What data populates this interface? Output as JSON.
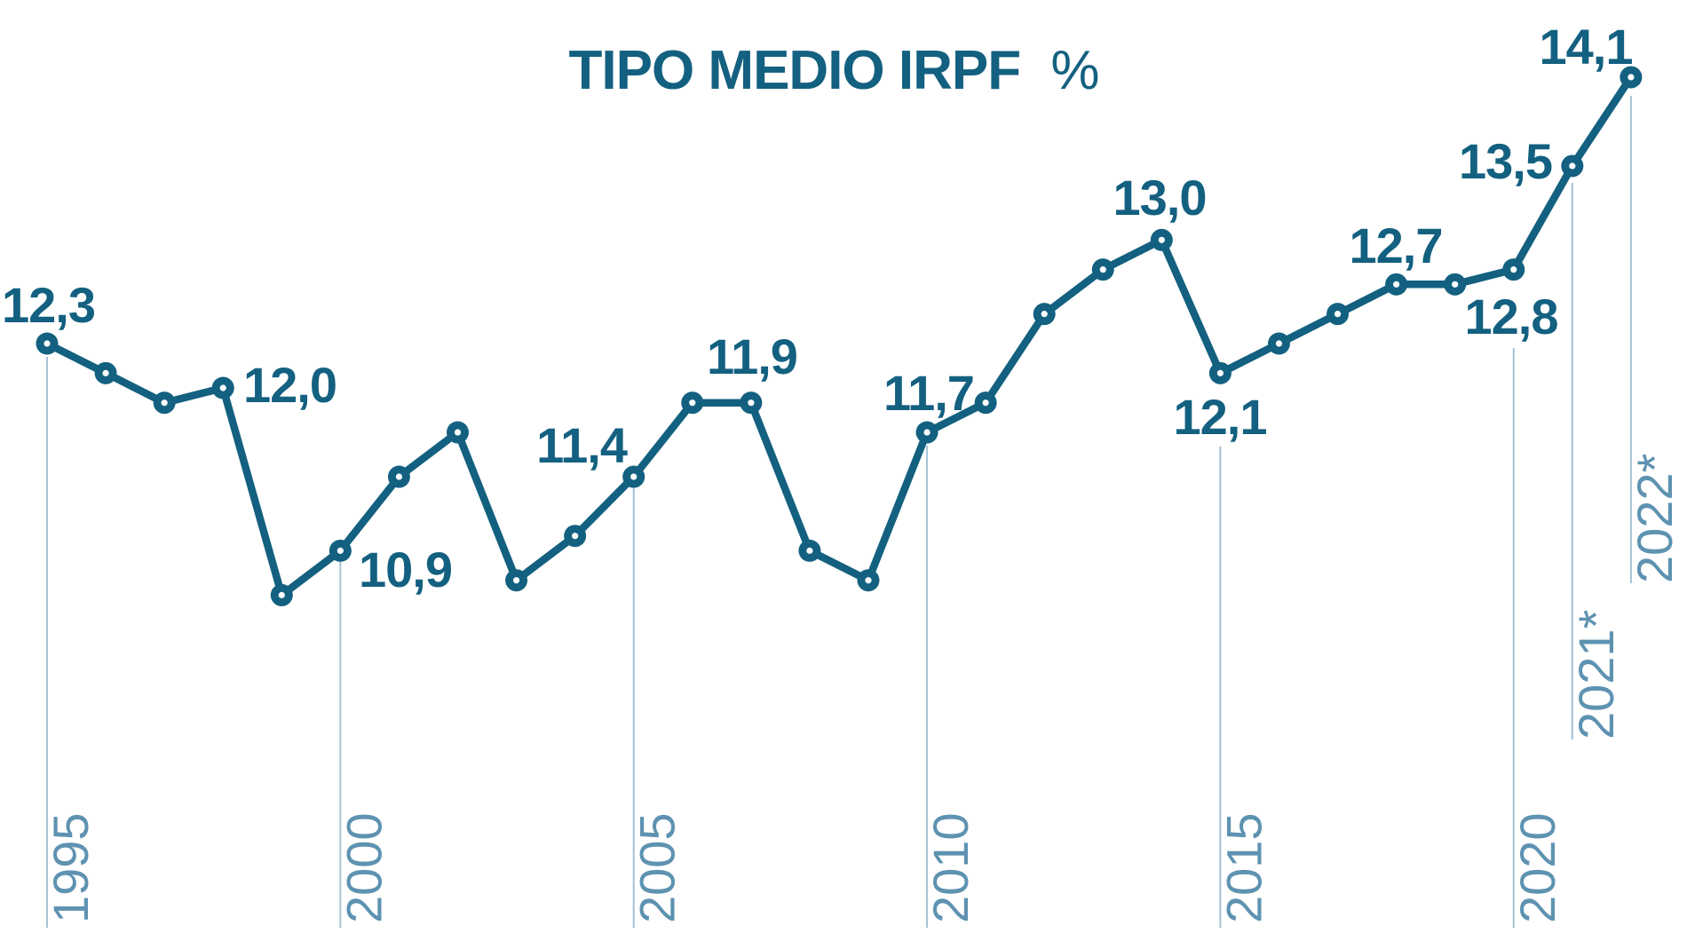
{
  "title": {
    "main": "TIPO MEDIO IRPF",
    "suffix": "%"
  },
  "colors": {
    "series": "#136080",
    "label": "#136080",
    "axis_text": "#5e92b1",
    "gridline": "#a5c2d4",
    "marker_center": "#ffffff",
    "background": "#ffffff"
  },
  "chart_data": {
    "type": "line",
    "title": "TIPO MEDIO IRPF %",
    "xlabel": "",
    "ylabel": "",
    "legend": "none",
    "grid": "vertical-year-ticks-only",
    "decimal_separator": ",",
    "ylim": [
      10.3,
      14.4
    ],
    "x": [
      1995,
      1996,
      1997,
      1998,
      1999,
      2000,
      2001,
      2002,
      2003,
      2004,
      2005,
      2006,
      2007,
      2008,
      2009,
      2010,
      2011,
      2012,
      2013,
      2014,
      2015,
      2016,
      2017,
      2018,
      2019,
      2020,
      2021,
      2022
    ],
    "values": [
      12.3,
      12.1,
      11.9,
      12.0,
      10.6,
      10.9,
      11.4,
      11.7,
      10.7,
      11.0,
      11.4,
      11.9,
      11.9,
      10.9,
      10.7,
      11.7,
      11.9,
      12.5,
      12.8,
      13.0,
      12.1,
      12.3,
      12.5,
      12.7,
      12.7,
      12.8,
      13.5,
      14.1
    ],
    "point_labels": [
      {
        "year": 1995,
        "text": "12,3"
      },
      {
        "year": 1998,
        "text": "12,0"
      },
      {
        "year": 2000,
        "text": "10,9"
      },
      {
        "year": 2005,
        "text": "11,4"
      },
      {
        "year": 2007,
        "text": "11,9"
      },
      {
        "year": 2010,
        "text": "11,7"
      },
      {
        "year": 2014,
        "text": "13,0"
      },
      {
        "year": 2015,
        "text": "12,1"
      },
      {
        "year": 2018,
        "text": "12,7"
      },
      {
        "year": 2020,
        "text": "12,8"
      },
      {
        "year": 2021,
        "text": "13,5"
      },
      {
        "year": 2022,
        "text": "14,1"
      }
    ],
    "x_ticks": [
      {
        "year": 1995,
        "label": "1995"
      },
      {
        "year": 2000,
        "label": "2000"
      },
      {
        "year": 2005,
        "label": "2005"
      },
      {
        "year": 2010,
        "label": "2010"
      },
      {
        "year": 2015,
        "label": "2015"
      },
      {
        "year": 2020,
        "label": "2020"
      },
      {
        "year": 2021,
        "label": "2021*"
      },
      {
        "year": 2022,
        "label": "2022*"
      }
    ]
  }
}
